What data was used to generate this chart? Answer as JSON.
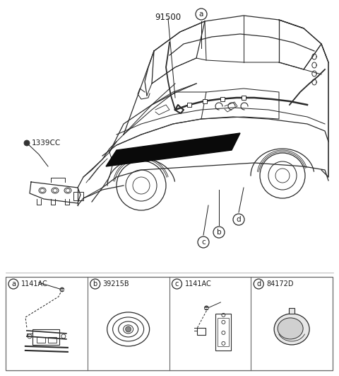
{
  "bg_color": "#ffffff",
  "line_color": "#2a2a2a",
  "text_color": "#1a1a1a",
  "part_number_main": "91500",
  "side_label": "1339CC",
  "sub_a_code": "1141AC",
  "sub_b_code": "39215B",
  "sub_c_code": "1141AC",
  "sub_d_code": "84172D",
  "fig_width": 4.8,
  "fig_height": 5.31,
  "dpi": 100
}
